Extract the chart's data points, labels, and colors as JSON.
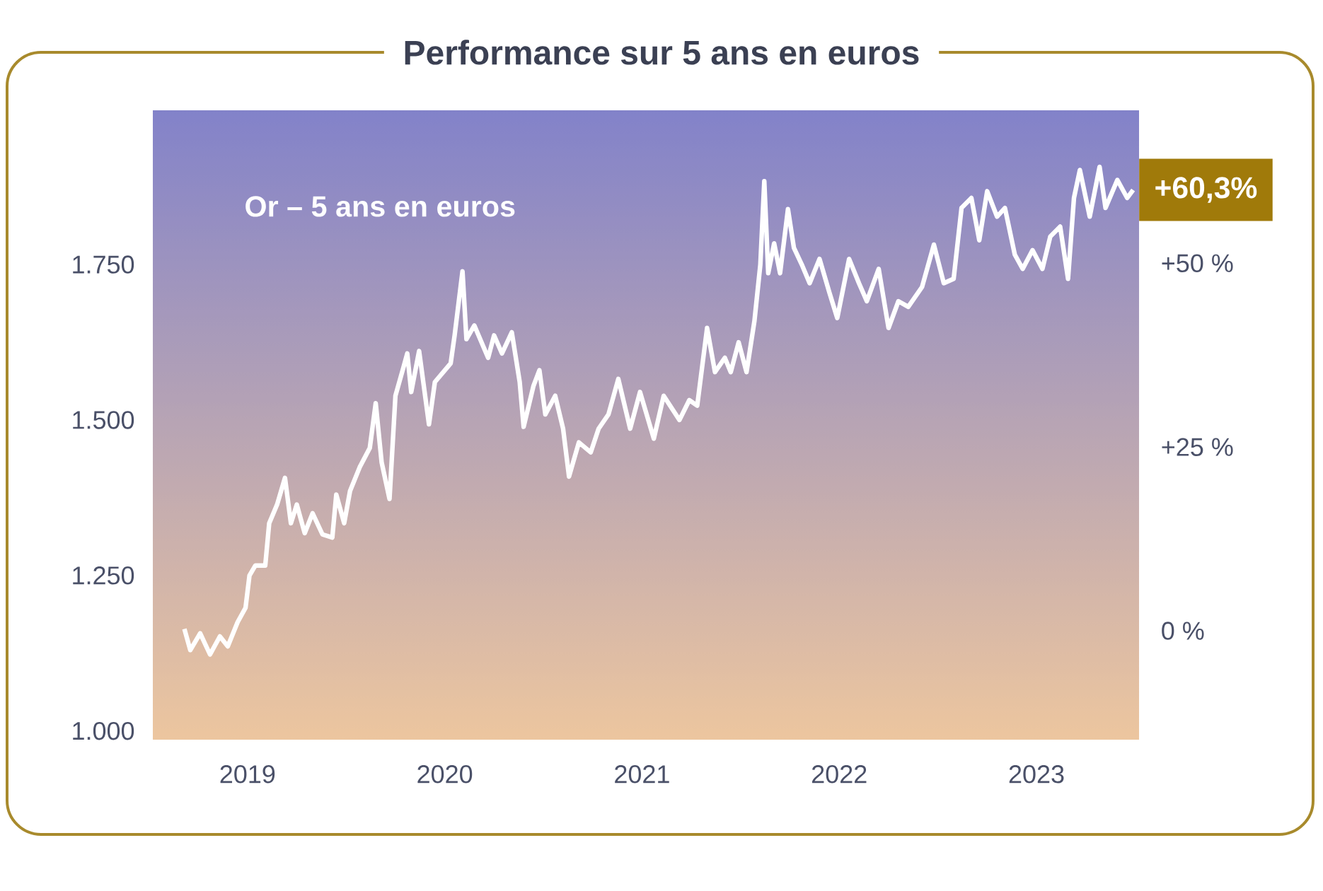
{
  "chart_data": {
    "type": "line",
    "title": "Performance sur 5 ans en euros",
    "xlim": [
      2018.52,
      2023.52
    ],
    "ylim": [
      986,
      1998
    ],
    "y2lim": [
      -14.8,
      70.8
    ],
    "xticks": [
      2019,
      2020,
      2021,
      2022,
      2023
    ],
    "yticks": [
      {
        "value": 1000,
        "label": "1.000"
      },
      {
        "value": 1250,
        "label": "1.250"
      },
      {
        "value": 1500,
        "label": "1.500"
      },
      {
        "value": 1750,
        "label": "1.750"
      }
    ],
    "y2ticks": [
      {
        "value": 0,
        "label": "0 %"
      },
      {
        "value": 25,
        "label": "+25 %"
      },
      {
        "value": 50,
        "label": "+50 %"
      }
    ],
    "annotations": [
      "Or – 5 ans en euros",
      {
        "text": "+60,3%",
        "x": 2023.49,
        "y": 1870
      }
    ],
    "series": [
      {
        "color": "#ffffff",
        "x": [
          2018.68,
          2018.71,
          2018.76,
          2018.81,
          2018.86,
          2018.9,
          2018.95,
          2018.99,
          2019.01,
          2019.04,
          2019.09,
          2019.11,
          2019.15,
          2019.19,
          2019.22,
          2019.25,
          2019.29,
          2019.33,
          2019.38,
          2019.43,
          2019.45,
          2019.49,
          2019.52,
          2019.57,
          2019.62,
          2019.65,
          2019.68,
          2019.72,
          2019.75,
          2019.79,
          2019.81,
          2019.83,
          2019.87,
          2019.92,
          2019.95,
          2020.03,
          2020.05,
          2020.09,
          2020.11,
          2020.15,
          2020.22,
          2020.25,
          2020.29,
          2020.34,
          2020.38,
          2020.4,
          2020.45,
          2020.48,
          2020.51,
          2020.56,
          2020.6,
          2020.63,
          2020.68,
          2020.74,
          2020.78,
          2020.83,
          2020.88,
          2020.94,
          2020.99,
          2021.06,
          2021.11,
          2021.19,
          2021.24,
          2021.28,
          2021.33,
          2021.37,
          2021.42,
          2021.45,
          2021.49,
          2021.53,
          2021.57,
          2021.6,
          2021.62,
          2021.64,
          2021.67,
          2021.7,
          2021.74,
          2021.77,
          2021.81,
          2021.85,
          2021.9,
          2021.95,
          2021.99,
          2022.05,
          2022.1,
          2022.14,
          2022.2,
          2022.25,
          2022.3,
          2022.35,
          2022.42,
          2022.48,
          2022.53,
          2022.58,
          2022.62,
          2022.67,
          2022.71,
          2022.75,
          2022.8,
          2022.84,
          2022.89,
          2022.93,
          2022.98,
          2023.03,
          2023.07,
          2023.12,
          2023.16,
          2023.19,
          2023.22,
          2023.27,
          2023.32,
          2023.35,
          2023.41,
          2023.46,
          2023.49
        ],
        "values": [
          1164,
          1130,
          1157,
          1123,
          1152,
          1136,
          1175,
          1198,
          1250,
          1266,
          1266,
          1334,
          1364,
          1407,
          1334,
          1364,
          1318,
          1350,
          1316,
          1311,
          1380,
          1334,
          1386,
          1425,
          1455,
          1527,
          1432,
          1373,
          1539,
          1584,
          1607,
          1545,
          1611,
          1493,
          1561,
          1591,
          1636,
          1739,
          1630,
          1652,
          1600,
          1636,
          1607,
          1641,
          1561,
          1489,
          1555,
          1580,
          1509,
          1539,
          1486,
          1409,
          1464,
          1448,
          1486,
          1509,
          1566,
          1486,
          1545,
          1470,
          1539,
          1500,
          1532,
          1523,
          1648,
          1577,
          1600,
          1577,
          1625,
          1577,
          1659,
          1750,
          1884,
          1736,
          1784,
          1736,
          1839,
          1777,
          1750,
          1720,
          1759,
          1705,
          1664,
          1759,
          1720,
          1691,
          1743,
          1648,
          1691,
          1682,
          1714,
          1782,
          1720,
          1727,
          1841,
          1857,
          1789,
          1868,
          1827,
          1841,
          1766,
          1743,
          1773,
          1743,
          1795,
          1811,
          1727,
          1857,
          1902,
          1827,
          1907,
          1841,
          1886,
          1857,
          1870
        ]
      }
    ]
  }
}
